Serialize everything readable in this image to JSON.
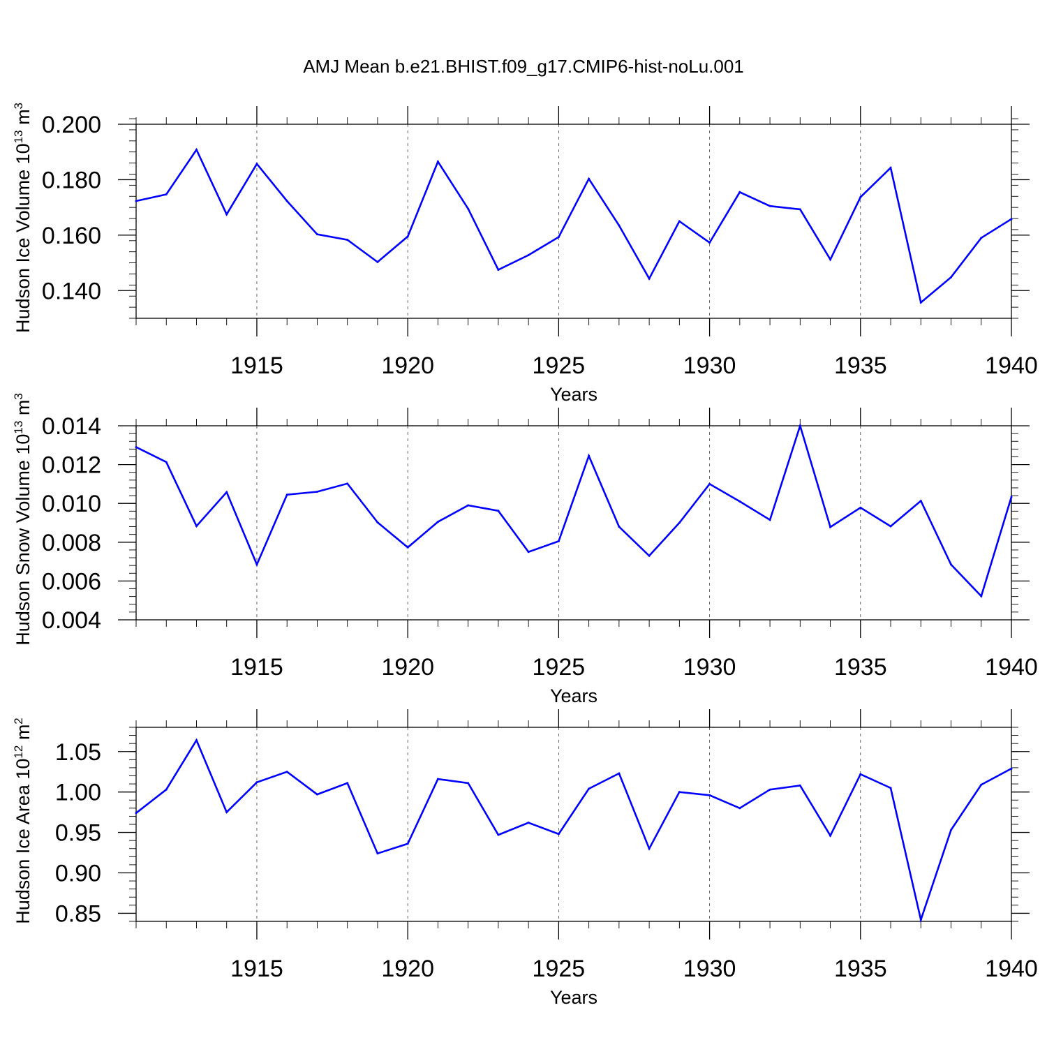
{
  "title": "AMJ Mean b.e21.BHIST.f09_g17.CMIP6-hist-noLu.001",
  "colors": {
    "line": "#0000ff",
    "axis": "#000000",
    "grid": "#000000"
  },
  "chart_data": [
    {
      "type": "line",
      "ylabel": {
        "text": "Hudson Ice Volume 10",
        "sup": "13",
        "unit": " m",
        "unit_sup": "3"
      },
      "xlabel": "Years",
      "xlim": [
        1911,
        1940
      ],
      "ylim": [
        0.13,
        0.2
      ],
      "xticks": [
        1915,
        1920,
        1925,
        1930,
        1935,
        1940
      ],
      "yticks": [
        0.14,
        0.16,
        0.18,
        0.2
      ],
      "ytick_labels": [
        "0.140",
        "0.160",
        "0.180",
        "0.200"
      ],
      "y_minor_step": 0.004,
      "grid": "vertical dashed at major x ticks",
      "x": [
        1911,
        1912,
        1913,
        1914,
        1915,
        1916,
        1917,
        1918,
        1919,
        1920,
        1921,
        1922,
        1923,
        1924,
        1925,
        1926,
        1927,
        1928,
        1929,
        1930,
        1931,
        1932,
        1933,
        1934,
        1935,
        1936,
        1937,
        1938,
        1939,
        1940
      ],
      "y": [
        0.1723,
        0.1747,
        0.1908,
        0.1675,
        0.1857,
        0.1723,
        0.1603,
        0.1583,
        0.1503,
        0.1595,
        0.1865,
        0.1695,
        0.1475,
        0.1528,
        0.1593,
        0.1803,
        0.1635,
        0.1443,
        0.165,
        0.1573,
        0.1755,
        0.1705,
        0.1693,
        0.1512,
        0.1737,
        0.1843,
        0.1357,
        0.1448,
        0.159,
        0.1658
      ]
    },
    {
      "type": "line",
      "ylabel": {
        "text": "Hudson Snow Volume 10",
        "sup": "13",
        "unit": " m",
        "unit_sup": "3"
      },
      "xlabel": "Years",
      "xlim": [
        1911,
        1940
      ],
      "ylim": [
        0.004,
        0.014
      ],
      "xticks": [
        1915,
        1920,
        1925,
        1930,
        1935,
        1940
      ],
      "yticks": [
        0.004,
        0.006,
        0.008,
        0.01,
        0.012,
        0.014
      ],
      "ytick_labels": [
        "0.004",
        "0.006",
        "0.008",
        "0.010",
        "0.012",
        "0.014"
      ],
      "y_minor_step": 0.0004,
      "grid": "vertical dashed at major x ticks",
      "x": [
        1911,
        1912,
        1913,
        1914,
        1915,
        1916,
        1917,
        1918,
        1919,
        1920,
        1921,
        1922,
        1923,
        1924,
        1925,
        1926,
        1927,
        1928,
        1929,
        1930,
        1931,
        1932,
        1933,
        1934,
        1935,
        1936,
        1937,
        1938,
        1939,
        1940
      ],
      "y": [
        0.0129,
        0.01213,
        0.00883,
        0.01058,
        0.00685,
        0.01045,
        0.0106,
        0.01102,
        0.00902,
        0.00773,
        0.00905,
        0.0099,
        0.00962,
        0.0075,
        0.00805,
        0.01245,
        0.0088,
        0.0073,
        0.009,
        0.011,
        0.0101,
        0.00915,
        0.014,
        0.00878,
        0.00978,
        0.00882,
        0.01013,
        0.00685,
        0.00522,
        0.01033
      ]
    },
    {
      "type": "line",
      "ylabel": {
        "text": "Hudson Ice Area 10",
        "sup": "12",
        "unit": " m",
        "unit_sup": "2"
      },
      "xlabel": "Years",
      "xlim": [
        1911,
        1940
      ],
      "ylim": [
        0.84,
        1.08
      ],
      "xticks": [
        1915,
        1920,
        1925,
        1930,
        1935,
        1940
      ],
      "yticks": [
        0.85,
        0.9,
        0.95,
        1.0,
        1.05
      ],
      "ytick_labels": [
        "0.85",
        "0.90",
        "0.95",
        "1.00",
        "1.05"
      ],
      "y_minor_step": 0.01,
      "grid": "vertical dashed at major x ticks",
      "x": [
        1911,
        1912,
        1913,
        1914,
        1915,
        1916,
        1917,
        1918,
        1919,
        1920,
        1921,
        1922,
        1923,
        1924,
        1925,
        1926,
        1927,
        1928,
        1929,
        1930,
        1931,
        1932,
        1933,
        1934,
        1935,
        1936,
        1937,
        1938,
        1939,
        1940
      ],
      "y": [
        0.974,
        1.003,
        1.064,
        0.975,
        1.012,
        1.025,
        0.997,
        1.011,
        0.924,
        0.936,
        1.016,
        1.011,
        0.947,
        0.962,
        0.948,
        1.004,
        1.023,
        0.93,
        1.0,
        0.996,
        0.98,
        1.003,
        1.008,
        0.946,
        1.022,
        1.005,
        0.842,
        0.953,
        1.009,
        1.029
      ]
    }
  ]
}
